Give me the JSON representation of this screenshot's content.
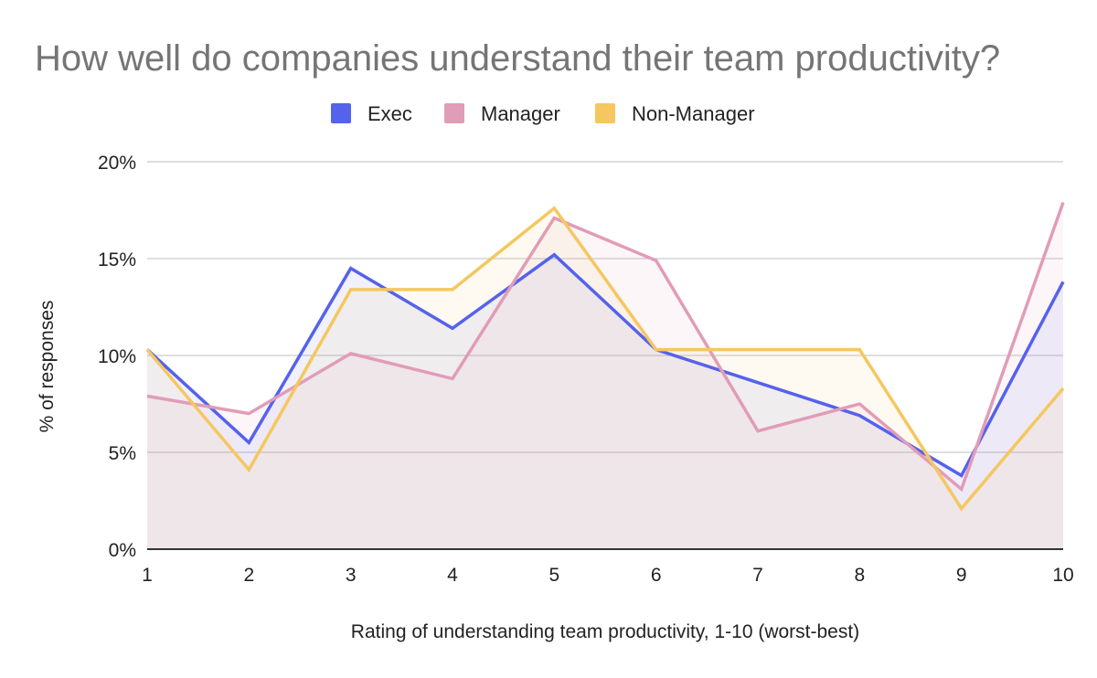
{
  "chart_data": {
    "type": "area",
    "title": "How well do companies understand their team productivity?",
    "xlabel": "Rating of understanding team productivity, 1-10 (worst-best)",
    "ylabel": "% of responses",
    "categories": [
      "1",
      "2",
      "3",
      "4",
      "5",
      "6",
      "7",
      "8",
      "9",
      "10"
    ],
    "ylim": [
      0,
      20
    ],
    "y_ticks": [
      "0%",
      "5%",
      "10%",
      "15%",
      "20%"
    ],
    "y_tick_values": [
      0,
      5,
      10,
      15,
      20
    ],
    "grid": true,
    "legend_position": "top",
    "series": [
      {
        "name": "Exec",
        "color": "#5562eb",
        "values": [
          10.3,
          5.5,
          14.5,
          11.4,
          15.2,
          10.3,
          8.6,
          6.9,
          3.8,
          13.8
        ]
      },
      {
        "name": "Manager",
        "color": "#e19cb7",
        "values": [
          7.9,
          7.0,
          10.1,
          8.8,
          17.1,
          14.9,
          6.1,
          7.5,
          3.1,
          17.9
        ]
      },
      {
        "name": "Non-Manager",
        "color": "#f5c75f",
        "values": [
          10.3,
          4.1,
          13.4,
          13.4,
          17.6,
          10.3,
          10.3,
          10.3,
          2.1,
          8.3
        ]
      }
    ]
  }
}
